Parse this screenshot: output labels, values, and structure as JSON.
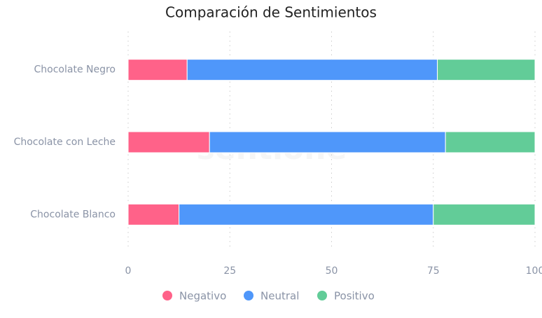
{
  "chart_data": {
    "type": "stacked-barh",
    "title": "Comparación de Sentimientos",
    "watermark": "sentione",
    "categories": [
      "Chocolate Negro",
      "Chocolate con Leche",
      "Chocolate Blanco"
    ],
    "series": [
      {
        "name": "Negativo",
        "color": "#ff6289",
        "values": [
          14.5,
          20,
          12.5
        ]
      },
      {
        "name": "Neutral",
        "color": "#4f97fa",
        "values": [
          61.5,
          58,
          62.5
        ]
      },
      {
        "name": "Positivo",
        "color": "#62cc98",
        "values": [
          24,
          22,
          25
        ]
      }
    ],
    "xlim": [
      0,
      100
    ],
    "xticks": [
      0,
      25,
      50,
      75,
      100
    ],
    "grid": true,
    "legend": "bottom"
  }
}
